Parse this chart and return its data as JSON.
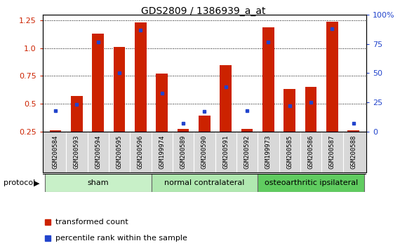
{
  "title": "GDS2809 / 1386939_a_at",
  "samples": [
    "GSM200584",
    "GSM200593",
    "GSM200594",
    "GSM200595",
    "GSM200596",
    "GSM199974",
    "GSM200589",
    "GSM200590",
    "GSM200591",
    "GSM200592",
    "GSM199973",
    "GSM200585",
    "GSM200586",
    "GSM200587",
    "GSM200588"
  ],
  "transformed_count": [
    0.26,
    0.57,
    1.13,
    1.01,
    1.23,
    0.77,
    0.27,
    0.39,
    0.85,
    0.27,
    1.19,
    0.63,
    0.65,
    1.24,
    0.26
  ],
  "percentile_rank": [
    18,
    23,
    77,
    50,
    87,
    33,
    7,
    17,
    38,
    18,
    77,
    22,
    25,
    88,
    7
  ],
  "groups": [
    {
      "label": "sham",
      "start": 0,
      "end": 4,
      "color": "#c8f0c8"
    },
    {
      "label": "normal contralateral",
      "start": 5,
      "end": 9,
      "color": "#b0e8b0"
    },
    {
      "label": "osteoarthritic ipsilateral",
      "start": 10,
      "end": 14,
      "color": "#60cc60"
    }
  ],
  "bar_color": "#cc2200",
  "blue_color": "#2244cc",
  "left_ylim": [
    0.25,
    1.3
  ],
  "right_ylim": [
    0,
    100
  ],
  "left_yticks": [
    0.25,
    0.5,
    0.75,
    1.0,
    1.25
  ],
  "right_yticks": [
    0,
    25,
    50,
    75,
    100
  ],
  "right_yticklabels": [
    "0",
    "25",
    "50",
    "75",
    "100%"
  ],
  "bar_width": 0.55,
  "protocol_label": "protocol"
}
